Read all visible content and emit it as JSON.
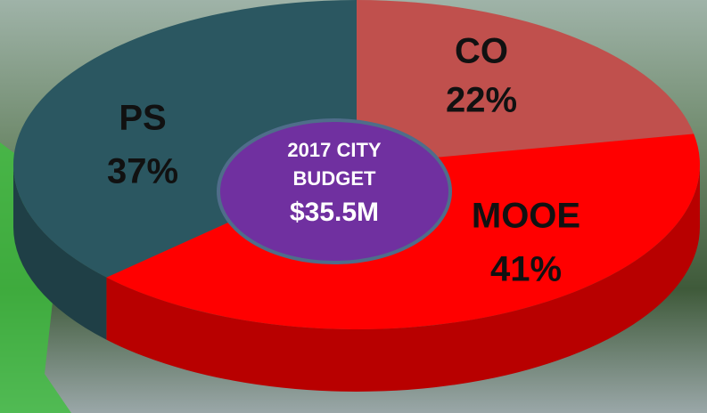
{
  "chart_data": {
    "type": "pie3d",
    "center_label": [
      "2017 CITY",
      "BUDGET"
    ],
    "total_label": "$35.5M",
    "categories": [
      "CO",
      "MOOE",
      "PS"
    ],
    "values": [
      22,
      41,
      37
    ],
    "value_labels": [
      "22%",
      "41%",
      "37%"
    ],
    "colors": [
      "#c0504d",
      "#ff0000",
      "#2b5761"
    ],
    "center_color": "#7030a0"
  }
}
